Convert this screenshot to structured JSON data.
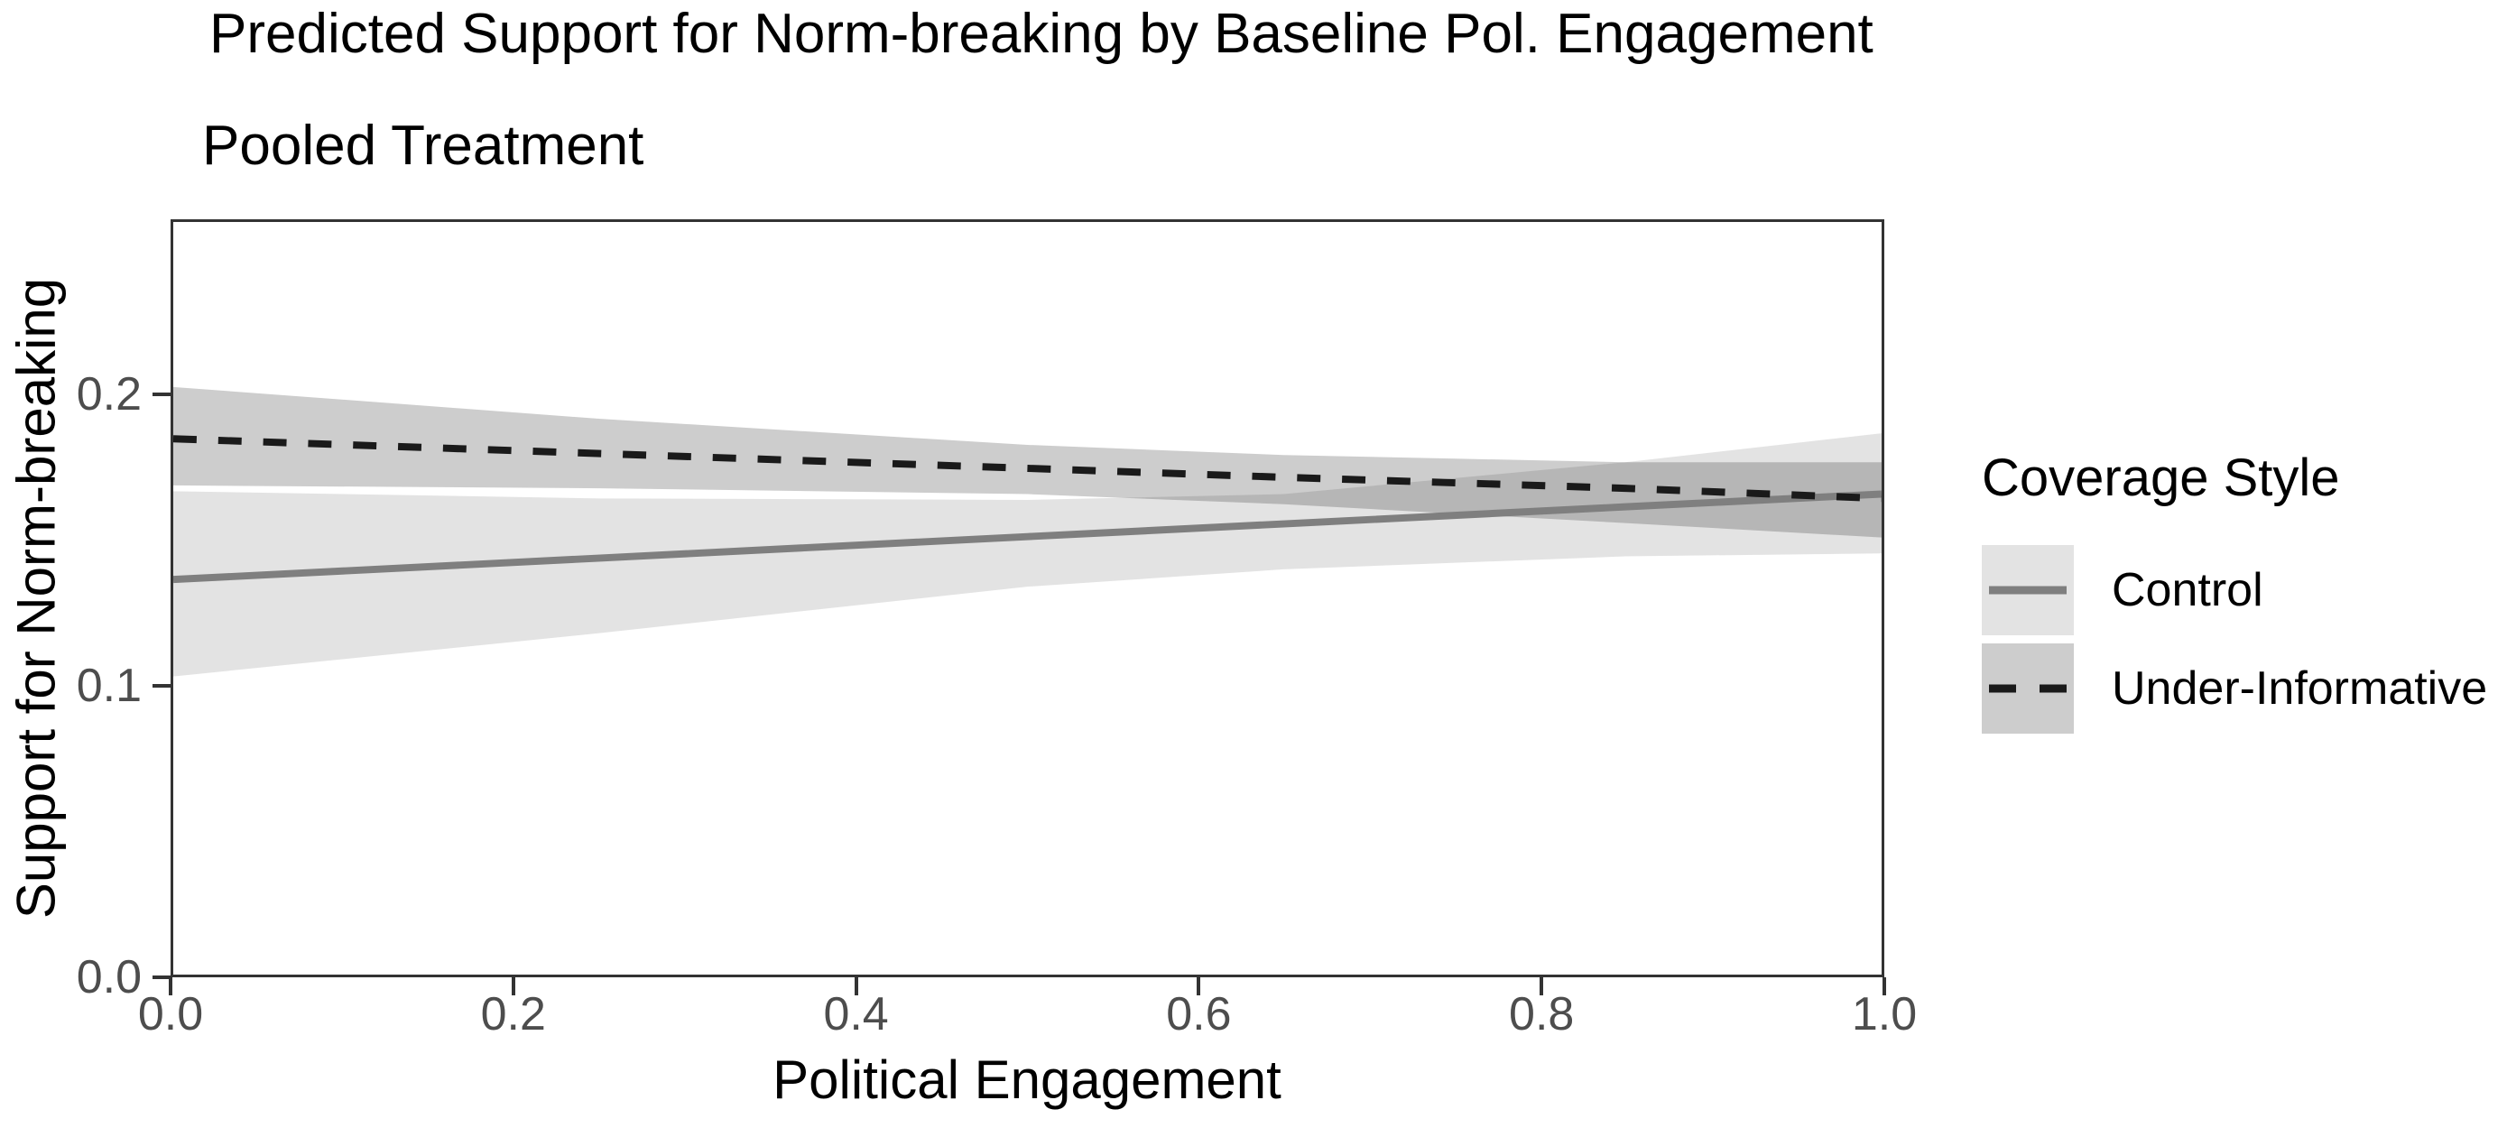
{
  "chart_data": {
    "type": "line",
    "title": "Predicted Support for Norm-breaking by Baseline Pol. Engagement",
    "subtitle": "Pooled Treatment",
    "xlabel": "Political Engagement",
    "ylabel": "Support for Norm-breaking",
    "grid": "off",
    "legend": {
      "title": "Coverage Style",
      "position": "right"
    },
    "x_axis": {
      "range": [
        0,
        1
      ],
      "ticks": [
        {
          "value": 0.0,
          "label": "0.0"
        },
        {
          "value": 0.2,
          "label": "0.2"
        },
        {
          "value": 0.4,
          "label": "0.4"
        },
        {
          "value": 0.6,
          "label": "0.6"
        },
        {
          "value": 0.8,
          "label": "0.8"
        },
        {
          "value": 1.0,
          "label": "1.0"
        }
      ]
    },
    "y_axis": {
      "range": [
        0,
        0.26
      ],
      "ticks": [
        {
          "value": 0.0,
          "label": "0.0"
        },
        {
          "value": 0.1,
          "label": "0.1"
        },
        {
          "value": 0.2,
          "label": "0.2"
        }
      ]
    },
    "colors": {
      "axis_line": "#333333",
      "tick_text": "#4d4d4d",
      "title_text": "#000000"
    },
    "dash_pattern": "26 24",
    "series": [
      {
        "name": "Control",
        "line_style": "solid",
        "line_color": "#7f7f7f",
        "line_width": 8,
        "ribbon_fill": "#000000",
        "ribbon_opacity": 0.11,
        "ribbon_visible_hex": "#e3e3e3",
        "x": [
          0.0,
          0.25,
          0.5,
          0.65,
          0.85,
          1.0
        ],
        "y": [
          0.1365,
          0.1439,
          0.1513,
          0.1557,
          0.1616,
          0.166
        ],
        "ci_low": [
          0.103,
          0.118,
          0.134,
          0.14,
          0.1445,
          0.1455
        ],
        "ci_high": [
          0.167,
          0.1645,
          0.164,
          0.166,
          0.177,
          0.187
        ]
      },
      {
        "name": "Under-Informative",
        "line_style": "dashed",
        "line_color": "#1a1a1a",
        "line_width": 8,
        "ribbon_fill": "#000000",
        "ribbon_opacity": 0.195,
        "ribbon_visible_hex": "#c9c9c9",
        "x": [
          0.0,
          0.25,
          0.5,
          0.65,
          0.85,
          1.0
        ],
        "y": [
          0.1851,
          0.18,
          0.1749,
          0.1718,
          0.168,
          0.1645
        ],
        "ci_low": [
          0.169,
          0.168,
          0.166,
          0.1625,
          0.156,
          0.151
        ],
        "ci_high": [
          0.203,
          0.192,
          0.183,
          0.1795,
          0.177,
          0.177
        ]
      }
    ]
  }
}
